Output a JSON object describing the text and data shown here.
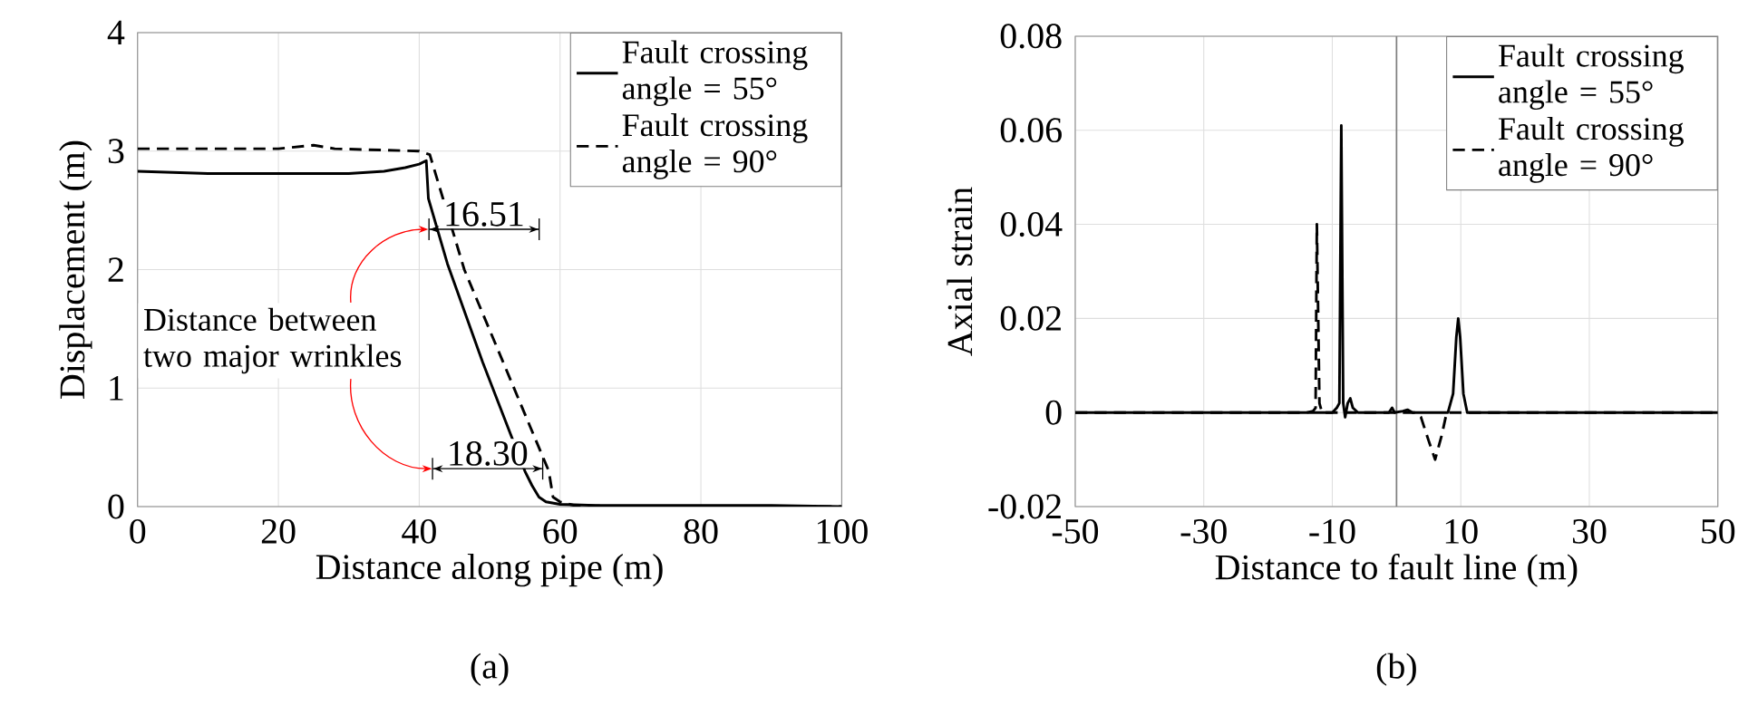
{
  "chart_data": [
    {
      "type": "line",
      "title": "(a)",
      "xlabel": "Distance along pipe (m)",
      "ylabel": "Displacement (m)",
      "xlim": [
        0,
        100
      ],
      "xticks": [
        0,
        20,
        40,
        60,
        80,
        100
      ],
      "ylim": [
        0,
        4
      ],
      "yticks": [
        0,
        1,
        2,
        3,
        4
      ],
      "grid": true,
      "legend": "top right",
      "series": [
        {
          "name": "Fault crossing angle = 55°",
          "color": "#000000",
          "line_style": "solid",
          "x": [
            0,
            5,
            10,
            20,
            30,
            35,
            38,
            40,
            41,
            41.3,
            44,
            49,
            55,
            56,
            57,
            58,
            60,
            65,
            70,
            80,
            90,
            100
          ],
          "values": [
            2.83,
            2.82,
            2.81,
            2.81,
            2.81,
            2.83,
            2.86,
            2.89,
            2.92,
            2.6,
            2.05,
            1.22,
            0.3,
            0.18,
            0.08,
            0.04,
            0.02,
            0.01,
            0.01,
            0.01,
            0.01,
            0
          ]
        },
        {
          "name": "Fault crossing angle = 90°",
          "color": "#000000",
          "line_style": "dashed",
          "x": [
            0,
            20,
            25,
            28,
            40,
            41.5,
            46.4,
            58.4,
            59,
            60,
            62,
            70,
            100
          ],
          "values": [
            3.02,
            3.02,
            3.05,
            3.02,
            3.0,
            2.97,
            2.0,
            0.3,
            0.08,
            0.04,
            0.01,
            0,
            0
          ]
        }
      ],
      "annotations": [
        "Distance between two major wrinkles",
        "16.51",
        "18.30"
      ]
    },
    {
      "type": "line",
      "title": "(b)",
      "xlabel": "Distance to fault line (m)",
      "ylabel": "Axial strain",
      "xlim": [
        -50,
        50
      ],
      "xticks": [
        -50,
        -30,
        -10,
        10,
        30,
        50
      ],
      "ylim": [
        -0.02,
        0.08
      ],
      "yticks": [
        -0.02,
        0,
        0.02,
        0.04,
        0.06,
        0.08
      ],
      "grid": true,
      "legend": "top right",
      "ref_lines": [
        {
          "axis": "x",
          "value": 0,
          "color": "#808080"
        }
      ],
      "series": [
        {
          "name": "Fault crossing angle = 55°",
          "color": "#000000",
          "line_style": "solid",
          "x": [
            -50,
            -20,
            -10,
            -9.3,
            -8.9,
            -8.6,
            -8.3,
            -8.0,
            -7.6,
            -7.2,
            -6.8,
            -6,
            -1.2,
            -0.7,
            -0.3,
            1,
            1.7,
            2.5,
            8,
            8.8,
            9.3,
            9.6,
            9.9,
            10.4,
            11,
            50
          ],
          "values": [
            0,
            0,
            0,
            0.001,
            0.002,
            0.061,
            0.002,
            -0.001,
            0.002,
            0.003,
            0.001,
            0,
            0,
            0.001,
            0,
            0.0003,
            0.0006,
            0,
            0,
            0.004,
            0.016,
            0.02,
            0.016,
            0.004,
            0,
            0
          ]
        },
        {
          "name": "Fault crossing angle = 90°",
          "color": "#000000",
          "line_style": "dashed",
          "x": [
            -50,
            -14,
            -13,
            -12.6,
            -12.4,
            -12.0,
            -11.6,
            3,
            3.8,
            5,
            6,
            7,
            7.8,
            50
          ],
          "values": [
            0,
            0,
            0.0003,
            0.001,
            0.04,
            0.002,
            0,
            0,
            -0.001,
            -0.006,
            -0.01,
            -0.005,
            0,
            0
          ]
        }
      ]
    }
  ]
}
